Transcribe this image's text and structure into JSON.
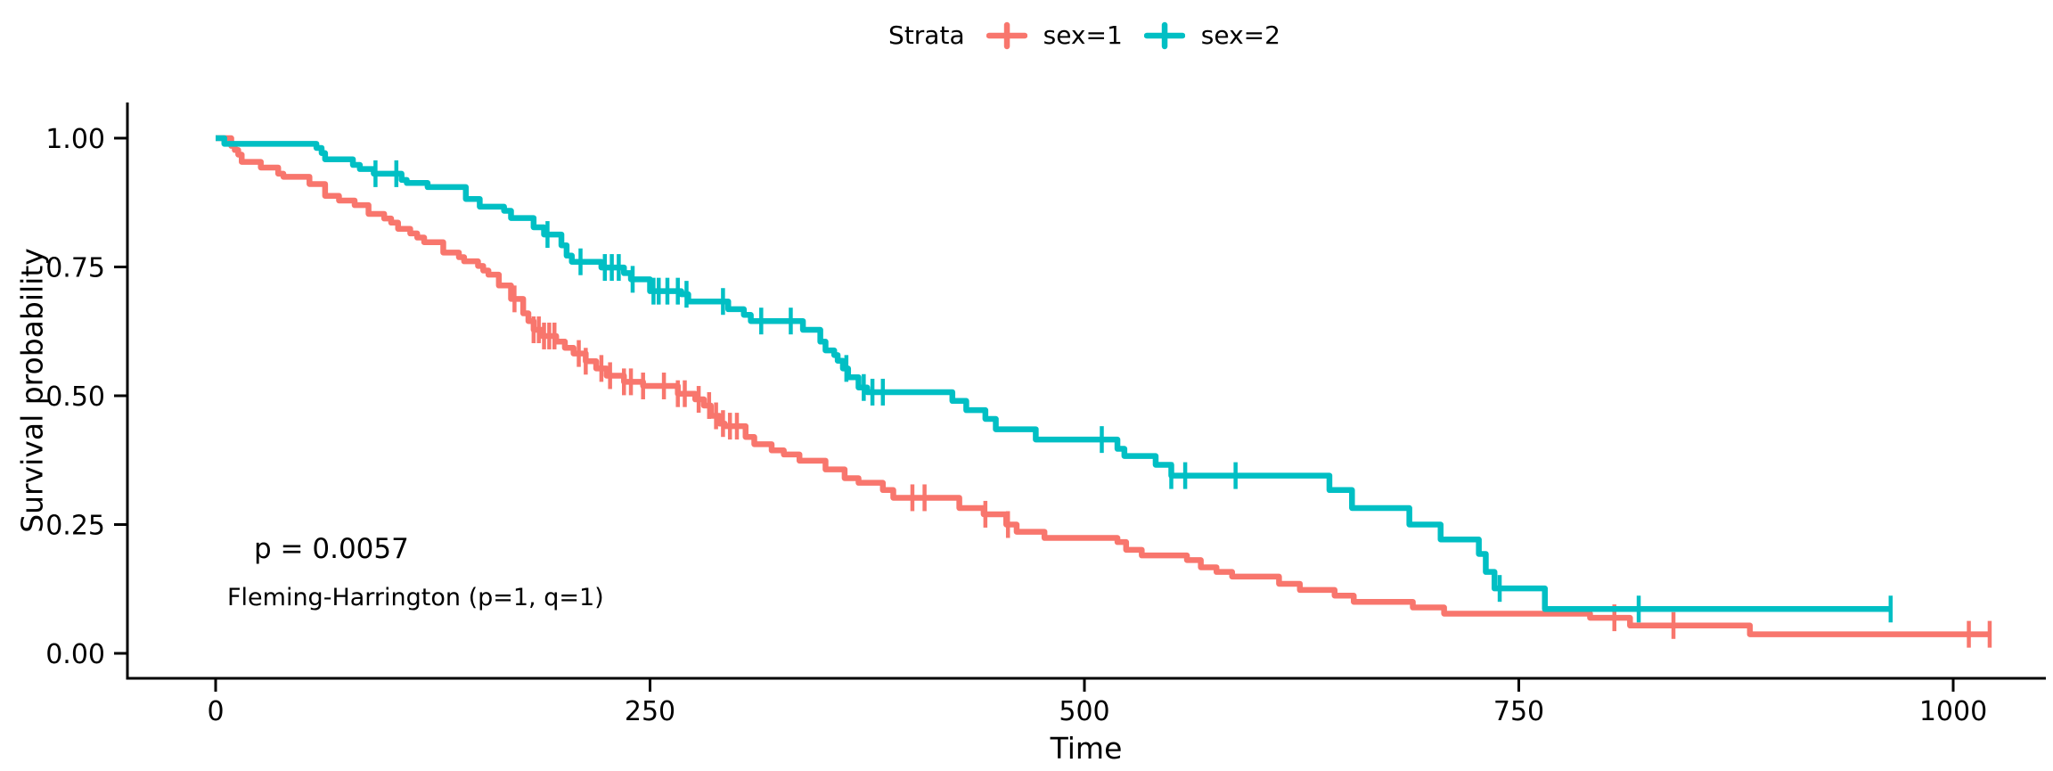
{
  "figure": {
    "background": "#FFFFFF",
    "legend": {
      "title": "Strata",
      "items": [
        {
          "label": "sex=1",
          "color": "#F8766D",
          "glyph": "censor-plus-icon"
        },
        {
          "label": "sex=2",
          "color": "#00BFC4",
          "glyph": "censor-plus-icon"
        }
      ]
    },
    "annotations": {
      "p_value": "p = 0.0057",
      "method": "Fleming-Harrington (p=1, q=1)"
    }
  },
  "chart_data": {
    "type": "line",
    "subtype": "kaplan-meier-step",
    "title": "",
    "xlabel": "Time",
    "ylabel": "Survival probability",
    "x_ticks": [
      0,
      250,
      500,
      750,
      1000
    ],
    "x_tick_labels": [
      "0",
      "250",
      "500",
      "750",
      "1000"
    ],
    "y_ticks": [
      0.0,
      0.25,
      0.5,
      0.75,
      1.0
    ],
    "y_tick_labels": [
      "0.00",
      "0.25",
      "0.50",
      "0.75",
      "1.00"
    ],
    "xlim": [
      0,
      1030
    ],
    "ylim": [
      0,
      1
    ],
    "grid": false,
    "legend_position": "top",
    "axis_color": "#000000",
    "series": [
      {
        "name": "sex=1",
        "color": "#F8766D",
        "max_time": 1022,
        "steps": [
          [
            0,
            1.0
          ],
          [
            9,
            0.985
          ],
          [
            11,
            0.977
          ],
          [
            13,
            0.968
          ],
          [
            15,
            0.954
          ],
          [
            26,
            0.943
          ],
          [
            36,
            0.931
          ],
          [
            39,
            0.925
          ],
          [
            54,
            0.911
          ],
          [
            63,
            0.888
          ],
          [
            71,
            0.879
          ],
          [
            80,
            0.87
          ],
          [
            88,
            0.853
          ],
          [
            97,
            0.844
          ],
          [
            101,
            0.836
          ],
          [
            105,
            0.824
          ],
          [
            112,
            0.815
          ],
          [
            116,
            0.807
          ],
          [
            120,
            0.798
          ],
          [
            131,
            0.778
          ],
          [
            140,
            0.769
          ],
          [
            143,
            0.761
          ],
          [
            151,
            0.752
          ],
          [
            154,
            0.743
          ],
          [
            157,
            0.735
          ],
          [
            163,
            0.714
          ],
          [
            170,
            0.688
          ],
          [
            177,
            0.66
          ],
          [
            180,
            0.645
          ],
          [
            183,
            0.628
          ],
          [
            188,
            0.616
          ],
          [
            196,
            0.605
          ],
          [
            201,
            0.593
          ],
          [
            206,
            0.582
          ],
          [
            213,
            0.567
          ],
          [
            219,
            0.553
          ],
          [
            225,
            0.539
          ],
          [
            235,
            0.527
          ],
          [
            246,
            0.519
          ],
          [
            266,
            0.504
          ],
          [
            276,
            0.493
          ],
          [
            281,
            0.481
          ],
          [
            285,
            0.461
          ],
          [
            290,
            0.446
          ],
          [
            293,
            0.441
          ],
          [
            305,
            0.42
          ],
          [
            310,
            0.406
          ],
          [
            320,
            0.394
          ],
          [
            327,
            0.386
          ],
          [
            336,
            0.374
          ],
          [
            351,
            0.357
          ],
          [
            362,
            0.34
          ],
          [
            370,
            0.331
          ],
          [
            384,
            0.317
          ],
          [
            390,
            0.302
          ],
          [
            428,
            0.282
          ],
          [
            442,
            0.27
          ],
          [
            455,
            0.25
          ],
          [
            461,
            0.236
          ],
          [
            477,
            0.224
          ],
          [
            519,
            0.216
          ],
          [
            524,
            0.201
          ],
          [
            533,
            0.19
          ],
          [
            559,
            0.181
          ],
          [
            567,
            0.167
          ],
          [
            576,
            0.158
          ],
          [
            585,
            0.149
          ],
          [
            612,
            0.135
          ],
          [
            624,
            0.123
          ],
          [
            644,
            0.112
          ],
          [
            655,
            0.1
          ],
          [
            689,
            0.089
          ],
          [
            707,
            0.077
          ],
          [
            791,
            0.069
          ],
          [
            814,
            0.054
          ],
          [
            883,
            0.037
          ]
        ],
        "censor_times": [
          172,
          183,
          186,
          189,
          192,
          195,
          209,
          213,
          222,
          227,
          235,
          239,
          246,
          258,
          266,
          270,
          278,
          284,
          288,
          292,
          296,
          300,
          401,
          408,
          443,
          456,
          805,
          839,
          1009,
          1021
        ]
      },
      {
        "name": "sex=2",
        "color": "#00BFC4",
        "max_time": 965,
        "steps": [
          [
            0,
            1.0
          ],
          [
            5,
            0.989
          ],
          [
            58,
            0.981
          ],
          [
            61,
            0.971
          ],
          [
            63,
            0.959
          ],
          [
            79,
            0.948
          ],
          [
            83,
            0.94
          ],
          [
            91,
            0.931
          ],
          [
            107,
            0.919
          ],
          [
            110,
            0.913
          ],
          [
            122,
            0.905
          ],
          [
            144,
            0.882
          ],
          [
            152,
            0.867
          ],
          [
            166,
            0.859
          ],
          [
            170,
            0.845
          ],
          [
            183,
            0.827
          ],
          [
            189,
            0.813
          ],
          [
            199,
            0.792
          ],
          [
            202,
            0.772
          ],
          [
            205,
            0.76
          ],
          [
            222,
            0.749
          ],
          [
            235,
            0.738
          ],
          [
            239,
            0.726
          ],
          [
            250,
            0.703
          ],
          [
            268,
            0.697
          ],
          [
            272,
            0.683
          ],
          [
            295,
            0.668
          ],
          [
            304,
            0.657
          ],
          [
            308,
            0.645
          ],
          [
            338,
            0.628
          ],
          [
            348,
            0.605
          ],
          [
            351,
            0.588
          ],
          [
            356,
            0.579
          ],
          [
            358,
            0.568
          ],
          [
            361,
            0.553
          ],
          [
            364,
            0.536
          ],
          [
            370,
            0.516
          ],
          [
            375,
            0.507
          ],
          [
            424,
            0.49
          ],
          [
            432,
            0.472
          ],
          [
            443,
            0.455
          ],
          [
            449,
            0.435
          ],
          [
            472,
            0.415
          ],
          [
            519,
            0.397
          ],
          [
            523,
            0.383
          ],
          [
            541,
            0.366
          ],
          [
            550,
            0.345
          ],
          [
            641,
            0.317
          ],
          [
            654,
            0.282
          ],
          [
            687,
            0.25
          ],
          [
            705,
            0.221
          ],
          [
            727,
            0.193
          ],
          [
            731,
            0.158
          ],
          [
            736,
            0.126
          ],
          [
            765,
            0.086
          ]
        ],
        "censor_times": [
          92,
          104,
          191,
          210,
          224,
          228,
          232,
          240,
          252,
          255,
          260,
          266,
          271,
          292,
          314,
          331,
          363,
          373,
          378,
          384,
          510,
          550,
          558,
          587,
          739,
          819,
          964
        ]
      }
    ]
  }
}
